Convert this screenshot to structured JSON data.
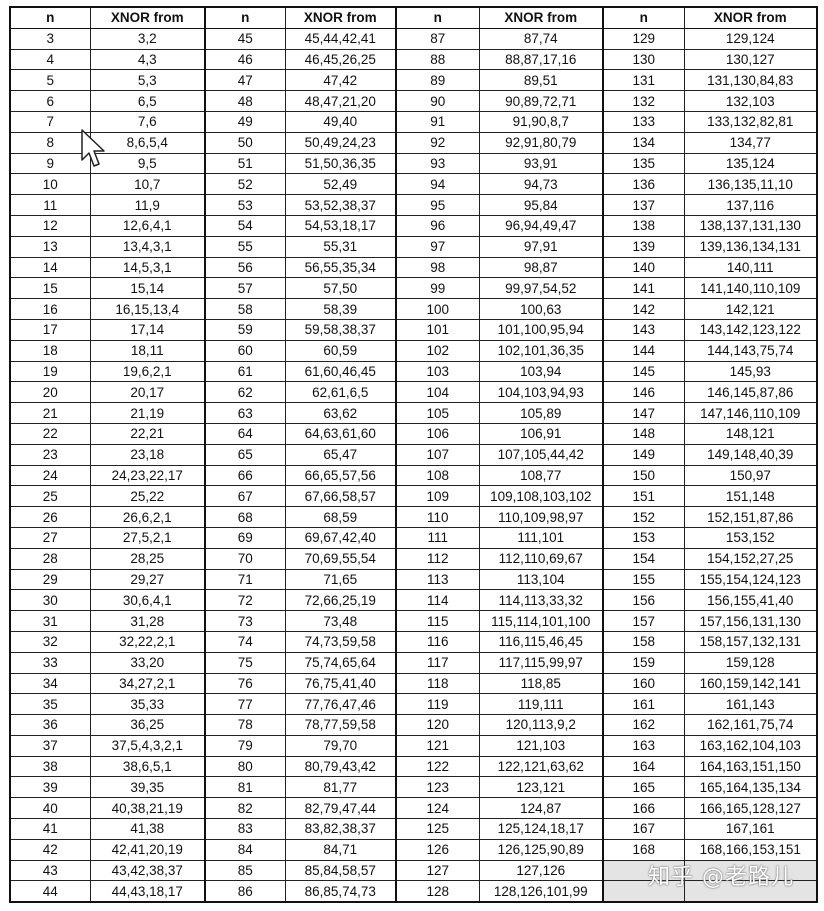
{
  "headers": {
    "n": "n",
    "taps": "XNOR from"
  },
  "groups": [
    [
      [
        "3",
        "3,2"
      ],
      [
        "4",
        "4,3"
      ],
      [
        "5",
        "5,3"
      ],
      [
        "6",
        "6,5"
      ],
      [
        "7",
        "7,6"
      ],
      [
        "8",
        "8,6,5,4"
      ],
      [
        "9",
        "9,5"
      ],
      [
        "10",
        "10,7"
      ],
      [
        "11",
        "11,9"
      ],
      [
        "12",
        "12,6,4,1"
      ],
      [
        "13",
        "13,4,3,1"
      ],
      [
        "14",
        "14,5,3,1"
      ],
      [
        "15",
        "15,14"
      ],
      [
        "16",
        "16,15,13,4"
      ],
      [
        "17",
        "17,14"
      ],
      [
        "18",
        "18,11"
      ],
      [
        "19",
        "19,6,2,1"
      ],
      [
        "20",
        "20,17"
      ],
      [
        "21",
        "21,19"
      ],
      [
        "22",
        "22,21"
      ],
      [
        "23",
        "23,18"
      ],
      [
        "24",
        "24,23,22,17"
      ],
      [
        "25",
        "25,22"
      ],
      [
        "26",
        "26,6,2,1"
      ],
      [
        "27",
        "27,5,2,1"
      ],
      [
        "28",
        "28,25"
      ],
      [
        "29",
        "29,27"
      ],
      [
        "30",
        "30,6,4,1"
      ],
      [
        "31",
        "31,28"
      ],
      [
        "32",
        "32,22,2,1"
      ],
      [
        "33",
        "33,20"
      ],
      [
        "34",
        "34,27,2,1"
      ],
      [
        "35",
        "35,33"
      ],
      [
        "36",
        "36,25"
      ],
      [
        "37",
        "37,5,4,3,2,1"
      ],
      [
        "38",
        "38,6,5,1"
      ],
      [
        "39",
        "39,35"
      ],
      [
        "40",
        "40,38,21,19"
      ],
      [
        "41",
        "41,38"
      ],
      [
        "42",
        "42,41,20,19"
      ],
      [
        "43",
        "43,42,38,37"
      ],
      [
        "44",
        "44,43,18,17"
      ]
    ],
    [
      [
        "45",
        "45,44,42,41"
      ],
      [
        "46",
        "46,45,26,25"
      ],
      [
        "47",
        "47,42"
      ],
      [
        "48",
        "48,47,21,20"
      ],
      [
        "49",
        "49,40"
      ],
      [
        "50",
        "50,49,24,23"
      ],
      [
        "51",
        "51,50,36,35"
      ],
      [
        "52",
        "52,49"
      ],
      [
        "53",
        "53,52,38,37"
      ],
      [
        "54",
        "54,53,18,17"
      ],
      [
        "55",
        "55,31"
      ],
      [
        "56",
        "56,55,35,34"
      ],
      [
        "57",
        "57,50"
      ],
      [
        "58",
        "58,39"
      ],
      [
        "59",
        "59,58,38,37"
      ],
      [
        "60",
        "60,59"
      ],
      [
        "61",
        "61,60,46,45"
      ],
      [
        "62",
        "62,61,6,5"
      ],
      [
        "63",
        "63,62"
      ],
      [
        "64",
        "64,63,61,60"
      ],
      [
        "65",
        "65,47"
      ],
      [
        "66",
        "66,65,57,56"
      ],
      [
        "67",
        "67,66,58,57"
      ],
      [
        "68",
        "68,59"
      ],
      [
        "69",
        "69,67,42,40"
      ],
      [
        "70",
        "70,69,55,54"
      ],
      [
        "71",
        "71,65"
      ],
      [
        "72",
        "72,66,25,19"
      ],
      [
        "73",
        "73,48"
      ],
      [
        "74",
        "74,73,59,58"
      ],
      [
        "75",
        "75,74,65,64"
      ],
      [
        "76",
        "76,75,41,40"
      ],
      [
        "77",
        "77,76,47,46"
      ],
      [
        "78",
        "78,77,59,58"
      ],
      [
        "79",
        "79,70"
      ],
      [
        "80",
        "80,79,43,42"
      ],
      [
        "81",
        "81,77"
      ],
      [
        "82",
        "82,79,47,44"
      ],
      [
        "83",
        "83,82,38,37"
      ],
      [
        "84",
        "84,71"
      ],
      [
        "85",
        "85,84,58,57"
      ],
      [
        "86",
        "86,85,74,73"
      ]
    ],
    [
      [
        "87",
        "87,74"
      ],
      [
        "88",
        "88,87,17,16"
      ],
      [
        "89",
        "89,51"
      ],
      [
        "90",
        "90,89,72,71"
      ],
      [
        "91",
        "91,90,8,7"
      ],
      [
        "92",
        "92,91,80,79"
      ],
      [
        "93",
        "93,91"
      ],
      [
        "94",
        "94,73"
      ],
      [
        "95",
        "95,84"
      ],
      [
        "96",
        "96,94,49,47"
      ],
      [
        "97",
        "97,91"
      ],
      [
        "98",
        "98,87"
      ],
      [
        "99",
        "99,97,54,52"
      ],
      [
        "100",
        "100,63"
      ],
      [
        "101",
        "101,100,95,94"
      ],
      [
        "102",
        "102,101,36,35"
      ],
      [
        "103",
        "103,94"
      ],
      [
        "104",
        "104,103,94,93"
      ],
      [
        "105",
        "105,89"
      ],
      [
        "106",
        "106,91"
      ],
      [
        "107",
        "107,105,44,42"
      ],
      [
        "108",
        "108,77"
      ],
      [
        "109",
        "109,108,103,102"
      ],
      [
        "110",
        "110,109,98,97"
      ],
      [
        "111",
        "111,101"
      ],
      [
        "112",
        "112,110,69,67"
      ],
      [
        "113",
        "113,104"
      ],
      [
        "114",
        "114,113,33,32"
      ],
      [
        "115",
        "115,114,101,100"
      ],
      [
        "116",
        "116,115,46,45"
      ],
      [
        "117",
        "117,115,99,97"
      ],
      [
        "118",
        "118,85"
      ],
      [
        "119",
        "119,111"
      ],
      [
        "120",
        "120,113,9,2"
      ],
      [
        "121",
        "121,103"
      ],
      [
        "122",
        "122,121,63,62"
      ],
      [
        "123",
        "123,121"
      ],
      [
        "124",
        "124,87"
      ],
      [
        "125",
        "125,124,18,17"
      ],
      [
        "126",
        "126,125,90,89"
      ],
      [
        "127",
        "127,126"
      ],
      [
        "128",
        "128,126,101,99"
      ]
    ],
    [
      [
        "129",
        "129,124"
      ],
      [
        "130",
        "130,127"
      ],
      [
        "131",
        "131,130,84,83"
      ],
      [
        "132",
        "132,103"
      ],
      [
        "133",
        "133,132,82,81"
      ],
      [
        "134",
        "134,77"
      ],
      [
        "135",
        "135,124"
      ],
      [
        "136",
        "136,135,11,10"
      ],
      [
        "137",
        "137,116"
      ],
      [
        "138",
        "138,137,131,130"
      ],
      [
        "139",
        "139,136,134,131"
      ],
      [
        "140",
        "140,111"
      ],
      [
        "141",
        "141,140,110,109"
      ],
      [
        "142",
        "142,121"
      ],
      [
        "143",
        "143,142,123,122"
      ],
      [
        "144",
        "144,143,75,74"
      ],
      [
        "145",
        "145,93"
      ],
      [
        "146",
        "146,145,87,86"
      ],
      [
        "147",
        "147,146,110,109"
      ],
      [
        "148",
        "148,121"
      ],
      [
        "149",
        "149,148,40,39"
      ],
      [
        "150",
        "150,97"
      ],
      [
        "151",
        "151,148"
      ],
      [
        "152",
        "152,151,87,86"
      ],
      [
        "153",
        "153,152"
      ],
      [
        "154",
        "154,152,27,25"
      ],
      [
        "155",
        "155,154,124,123"
      ],
      [
        "156",
        "156,155,41,40"
      ],
      [
        "157",
        "157,156,131,130"
      ],
      [
        "158",
        "158,157,132,131"
      ],
      [
        "159",
        "159,128"
      ],
      [
        "160",
        "160,159,142,141"
      ],
      [
        "161",
        "161,143"
      ],
      [
        "162",
        "162,161,75,74"
      ],
      [
        "163",
        "163,162,104,103"
      ],
      [
        "164",
        "164,163,151,150"
      ],
      [
        "165",
        "165,164,135,134"
      ],
      [
        "166",
        "166,165,128,127"
      ],
      [
        "167",
        "167,161"
      ],
      [
        "168",
        "168,166,153,151"
      ]
    ]
  ],
  "watermark": "知乎 @老路儿",
  "colors": {
    "border": "#111111",
    "empty_cell": "#e4e4e4"
  },
  "cursor_icon": "arrow-pointer"
}
